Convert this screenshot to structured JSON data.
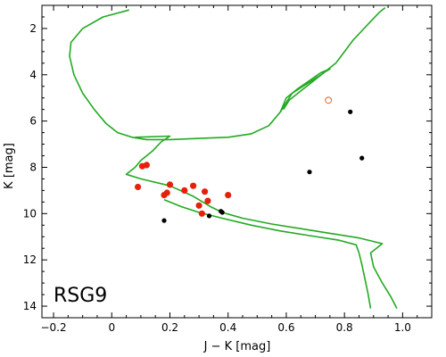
{
  "chart_data": {
    "type": "scatter",
    "title": "",
    "panel_label": "RSG9",
    "xlabel": "J − K [mag]",
    "ylabel": "K [mag]",
    "xlim": [
      -0.24,
      1.1
    ],
    "ylim": [
      14.5,
      1.0
    ],
    "y_inverted": true,
    "grid": false,
    "legend": "none",
    "x_ticks": [
      -0.2,
      0.0,
      0.2,
      0.4,
      0.6,
      0.8,
      1.0
    ],
    "x_tick_labels": [
      "−0.2",
      "0",
      "0.2",
      "0.4",
      "0.6",
      "0.8",
      "1.0"
    ],
    "y_ticks": [
      2,
      4,
      6,
      8,
      10,
      12,
      14
    ],
    "y_tick_labels": [
      "2",
      "4",
      "6",
      "8",
      "10",
      "12",
      "14"
    ],
    "colors": {
      "isochrone": "#22aa22",
      "red_points": "#e8200a",
      "black_points": "#000000",
      "open_point": "#e0651e"
    },
    "series": [
      {
        "kind": "line",
        "color": "#22aa22",
        "points": [
          [
            0.06,
            1.2
          ],
          [
            -0.03,
            1.5
          ],
          [
            -0.1,
            2.0
          ],
          [
            -0.14,
            2.6
          ],
          [
            -0.145,
            3.2
          ],
          [
            -0.13,
            4.0
          ],
          [
            -0.1,
            4.8
          ],
          [
            -0.06,
            5.5
          ],
          [
            -0.02,
            6.1
          ],
          [
            0.02,
            6.5
          ],
          [
            0.07,
            6.7
          ],
          [
            0.12,
            6.8
          ],
          [
            0.2,
            6.8
          ],
          [
            0.3,
            6.75
          ],
          [
            0.4,
            6.7
          ],
          [
            0.48,
            6.55
          ],
          [
            0.54,
            6.2
          ],
          [
            0.58,
            5.6
          ],
          [
            0.6,
            5.2
          ],
          [
            0.62,
            4.8
          ],
          [
            0.67,
            4.4
          ],
          [
            0.72,
            4.0
          ],
          [
            0.77,
            3.5
          ],
          [
            0.8,
            3.0
          ],
          [
            0.83,
            2.5
          ],
          [
            0.86,
            2.1
          ],
          [
            0.89,
            1.7
          ],
          [
            0.92,
            1.3
          ],
          [
            0.94,
            1.1
          ]
        ]
      },
      {
        "kind": "line",
        "color": "#22aa22",
        "points": [
          [
            0.58,
            5.6
          ],
          [
            0.6,
            5.0
          ],
          [
            0.64,
            4.6
          ],
          [
            0.68,
            4.25
          ],
          [
            0.72,
            3.9
          ],
          [
            0.75,
            3.75
          ],
          [
            0.73,
            3.9
          ],
          [
            0.69,
            4.3
          ],
          [
            0.65,
            4.7
          ],
          [
            0.61,
            5.1
          ],
          [
            0.59,
            5.5
          ]
        ]
      },
      {
        "kind": "line",
        "color": "#22aa22",
        "points": [
          [
            0.08,
            6.7
          ],
          [
            0.2,
            6.65
          ],
          [
            0.17,
            6.9
          ],
          [
            0.14,
            7.3
          ],
          [
            0.1,
            7.7
          ],
          [
            0.08,
            8.0
          ],
          [
            0.05,
            8.3
          ],
          [
            0.1,
            8.5
          ],
          [
            0.2,
            8.8
          ],
          [
            0.28,
            9.25
          ],
          [
            0.34,
            9.7
          ],
          [
            0.38,
            9.95
          ],
          [
            0.45,
            10.2
          ],
          [
            0.55,
            10.45
          ],
          [
            0.65,
            10.65
          ],
          [
            0.75,
            10.85
          ],
          [
            0.85,
            11.05
          ],
          [
            0.93,
            11.3
          ],
          [
            0.89,
            11.7
          ],
          [
            0.9,
            12.3
          ],
          [
            0.93,
            13.0
          ],
          [
            0.96,
            13.6
          ],
          [
            0.98,
            14.1
          ]
        ]
      },
      {
        "kind": "line",
        "color": "#22aa22",
        "points": [
          [
            0.18,
            9.4
          ],
          [
            0.24,
            9.7
          ],
          [
            0.3,
            9.95
          ],
          [
            0.38,
            10.2
          ],
          [
            0.48,
            10.5
          ],
          [
            0.58,
            10.75
          ],
          [
            0.68,
            10.95
          ],
          [
            0.78,
            11.15
          ],
          [
            0.84,
            11.35
          ],
          [
            0.85,
            11.7
          ],
          [
            0.86,
            12.2
          ],
          [
            0.87,
            12.8
          ],
          [
            0.88,
            13.4
          ],
          [
            0.89,
            14.1
          ]
        ]
      },
      {
        "kind": "scatter",
        "color": "#e8200a",
        "points": [
          [
            0.12,
            7.9
          ],
          [
            0.105,
            7.95
          ],
          [
            0.09,
            8.85
          ],
          [
            0.18,
            9.2
          ],
          [
            0.19,
            9.1
          ],
          [
            0.2,
            8.75
          ],
          [
            0.25,
            9.0
          ],
          [
            0.28,
            8.8
          ],
          [
            0.32,
            9.05
          ],
          [
            0.33,
            9.45
          ],
          [
            0.3,
            9.65
          ],
          [
            0.31,
            10.0
          ],
          [
            0.4,
            9.2
          ]
        ]
      },
      {
        "kind": "scatter",
        "color": "#000000",
        "points": [
          [
            0.18,
            10.3
          ],
          [
            0.335,
            10.1
          ],
          [
            0.375,
            9.9
          ],
          [
            0.38,
            9.95
          ],
          [
            0.68,
            8.2
          ],
          [
            0.82,
            5.6
          ],
          [
            0.86,
            7.6
          ]
        ]
      },
      {
        "kind": "scatter_open",
        "color": "#e0651e",
        "points": [
          [
            0.745,
            5.1
          ]
        ]
      }
    ]
  }
}
